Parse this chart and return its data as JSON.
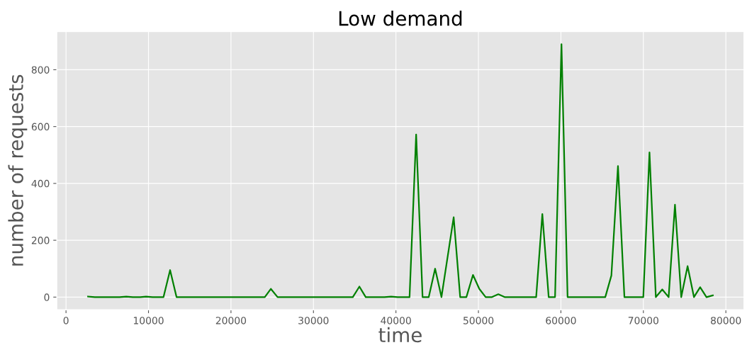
{
  "chart_data": {
    "type": "line",
    "title": "Low demand",
    "xlabel": "time",
    "ylabel": "number of requests",
    "x": [
      2670,
      3500,
      6500,
      7300,
      8100,
      9000,
      9700,
      10500,
      11820,
      12620,
      13400,
      24100,
      24840,
      25650,
      34770,
      35570,
      36340,
      38600,
      39410,
      40200,
      41650,
      42450,
      43230,
      43980,
      44750,
      45520,
      47000,
      47790,
      48540,
      49340,
      50110,
      50880,
      51640,
      52410,
      53180,
      57000,
      57750,
      58520,
      59290,
      60070,
      60810,
      65380,
      66120,
      66920,
      67700,
      69990,
      70740,
      71510,
      72290,
      73060,
      73830,
      74590,
      75360,
      76130,
      76880,
      77650,
      78420
    ],
    "series": [
      {
        "color": "#008000",
        "values": [
          2,
          0,
          0,
          2,
          0,
          0,
          2,
          0,
          0,
          95,
          0,
          0,
          29,
          0,
          0,
          37,
          0,
          0,
          2,
          0,
          0,
          572,
          0,
          0,
          100,
          0,
          281,
          0,
          0,
          78,
          29,
          0,
          0,
          10,
          0,
          0,
          292,
          0,
          0,
          890,
          0,
          0,
          76,
          461,
          0,
          0,
          509,
          0,
          27,
          0,
          325,
          0,
          109,
          0,
          35,
          0,
          6
        ]
      }
    ],
    "xlim": [
      -1120,
      82200
    ],
    "ylim": [
      -44.5,
      934.5
    ],
    "xticks": [
      0,
      10000,
      20000,
      30000,
      40000,
      50000,
      60000,
      70000,
      80000
    ],
    "yticks": [
      0,
      200,
      400,
      600,
      800
    ],
    "grid": true,
    "line_style": "solid",
    "marker": "none"
  }
}
